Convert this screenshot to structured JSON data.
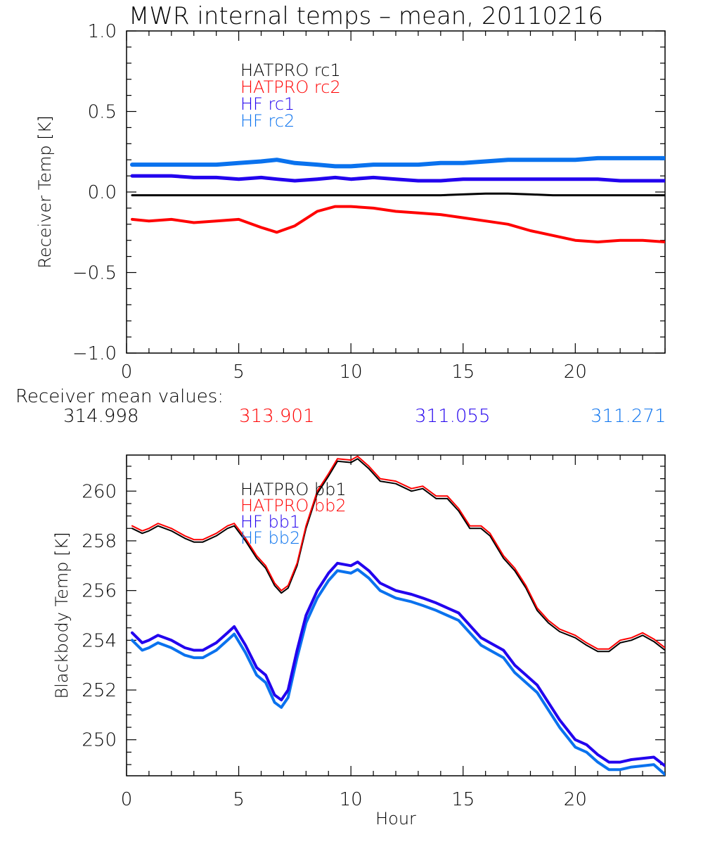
{
  "title": "MWR internal temps – mean, 20110216",
  "mean_values": {
    "label": "Receiver mean values:",
    "items": [
      {
        "text": "314.998",
        "color": "#000000"
      },
      {
        "text": "313.901",
        "color": "#ff0000"
      },
      {
        "text": "311.055",
        "color": "#2200ee"
      },
      {
        "text": "311.271",
        "color": "#0a72ee"
      }
    ]
  },
  "chart_data": [
    {
      "type": "line",
      "title": "MWR internal temps – mean, 20110216",
      "xlabel": "",
      "ylabel": "Receiver Temp [K]",
      "xlim": [
        0,
        24
      ],
      "ylim": [
        -1.0,
        1.0
      ],
      "xticks": [
        0,
        5,
        10,
        15,
        20
      ],
      "xtick_labels": [
        "0",
        "5",
        "10",
        "15",
        "20"
      ],
      "yticks": [
        -1.0,
        -0.5,
        0.0,
        0.5,
        1.0
      ],
      "ytick_labels": [
        "−1.0",
        "−0.5",
        "0.0",
        "0.5",
        "1.0"
      ],
      "grid": false,
      "legend_position": "top-left-center",
      "x": [
        0.25,
        1,
        2,
        3,
        4,
        5,
        6,
        6.7,
        7.5,
        8.5,
        9.3,
        10,
        11,
        12,
        13,
        14,
        15,
        16,
        17,
        18,
        19,
        20,
        21,
        22,
        23,
        24
      ],
      "series": [
        {
          "name": "HATPRO rc1",
          "color": "#000000",
          "width": 3,
          "values": [
            -0.02,
            -0.02,
            -0.02,
            -0.02,
            -0.02,
            -0.02,
            -0.02,
            -0.02,
            -0.02,
            -0.02,
            -0.02,
            -0.02,
            -0.02,
            -0.02,
            -0.02,
            -0.02,
            -0.015,
            -0.01,
            -0.01,
            -0.015,
            -0.02,
            -0.02,
            -0.02,
            -0.02,
            -0.02,
            -0.02
          ]
        },
        {
          "name": "HATPRO rc2",
          "color": "#ff0000",
          "width": 4,
          "values": [
            -0.17,
            -0.18,
            -0.17,
            -0.19,
            -0.18,
            -0.17,
            -0.22,
            -0.25,
            -0.21,
            -0.12,
            -0.09,
            -0.09,
            -0.1,
            -0.12,
            -0.13,
            -0.14,
            -0.16,
            -0.18,
            -0.2,
            -0.24,
            -0.27,
            -0.3,
            -0.31,
            -0.3,
            -0.3,
            -0.31
          ]
        },
        {
          "name": "HF rc1",
          "color": "#2200ee",
          "width": 5,
          "values": [
            0.1,
            0.1,
            0.1,
            0.09,
            0.09,
            0.08,
            0.09,
            0.08,
            0.07,
            0.08,
            0.09,
            0.08,
            0.09,
            0.08,
            0.07,
            0.07,
            0.08,
            0.08,
            0.08,
            0.08,
            0.08,
            0.08,
            0.08,
            0.07,
            0.07,
            0.07
          ]
        },
        {
          "name": "HF rc2",
          "color": "#0a72ee",
          "width": 6,
          "values": [
            0.17,
            0.17,
            0.17,
            0.17,
            0.17,
            0.18,
            0.19,
            0.2,
            0.18,
            0.17,
            0.16,
            0.16,
            0.17,
            0.17,
            0.17,
            0.18,
            0.18,
            0.19,
            0.2,
            0.2,
            0.2,
            0.2,
            0.21,
            0.21,
            0.21,
            0.21
          ]
        }
      ]
    },
    {
      "type": "line",
      "title": "",
      "xlabel": "Hour",
      "ylabel": "Blackbody Temp [K]",
      "xlim": [
        0,
        24
      ],
      "ylim": [
        248.55,
        261.45
      ],
      "xticks": [
        0,
        5,
        10,
        15,
        20
      ],
      "xtick_labels": [
        "0",
        "5",
        "10",
        "15",
        "20"
      ],
      "yticks": [
        250,
        252,
        254,
        256,
        258,
        260
      ],
      "ytick_labels": [
        "250",
        "252",
        "254",
        "256",
        "258",
        "260"
      ],
      "grid": false,
      "legend_position": "top-left-center",
      "x": [
        0.25,
        0.7,
        1.0,
        1.4,
        2.0,
        2.6,
        3.0,
        3.4,
        4.0,
        4.5,
        4.8,
        5.3,
        5.8,
        6.2,
        6.6,
        6.9,
        7.2,
        7.6,
        8.0,
        8.5,
        9.0,
        9.4,
        10.0,
        10.3,
        10.8,
        11.3,
        12.0,
        12.7,
        13.2,
        13.8,
        14.3,
        14.8,
        15.3,
        15.8,
        16.2,
        16.8,
        17.3,
        17.8,
        18.3,
        18.8,
        19.3,
        20.0,
        20.5,
        21.0,
        21.5,
        22.0,
        22.5,
        23.0,
        23.5,
        24.0
      ],
      "series": [
        {
          "name": "HATPRO bb1",
          "color": "#000000",
          "width": 2,
          "values": [
            258.5,
            258.3,
            258.4,
            258.6,
            258.4,
            258.1,
            257.95,
            257.95,
            258.2,
            258.5,
            258.6,
            258.0,
            257.3,
            256.9,
            256.2,
            255.9,
            256.1,
            257.0,
            258.5,
            259.9,
            260.6,
            261.2,
            261.15,
            261.3,
            260.9,
            260.4,
            260.3,
            260.0,
            260.1,
            259.7,
            259.7,
            259.2,
            258.5,
            258.5,
            258.2,
            257.3,
            256.8,
            256.1,
            255.2,
            254.7,
            254.35,
            254.1,
            253.8,
            253.55,
            253.55,
            253.9,
            254.0,
            254.2,
            253.95,
            253.6
          ]
        },
        {
          "name": "HATPRO bb2",
          "color": "#ff0000",
          "width": 2,
          "values": [
            258.6,
            258.4,
            258.5,
            258.7,
            258.5,
            258.2,
            258.05,
            258.05,
            258.3,
            258.6,
            258.7,
            258.1,
            257.4,
            257.0,
            256.3,
            256.0,
            256.2,
            257.1,
            258.6,
            260.0,
            260.7,
            261.3,
            261.25,
            261.4,
            261.0,
            260.5,
            260.4,
            260.1,
            260.2,
            259.8,
            259.8,
            259.3,
            258.6,
            258.6,
            258.3,
            257.4,
            256.9,
            256.2,
            255.3,
            254.8,
            254.45,
            254.2,
            253.9,
            253.65,
            253.65,
            254.0,
            254.1,
            254.3,
            254.05,
            253.7
          ]
        },
        {
          "name": "HF bb1",
          "color": "#2200ee",
          "width": 4,
          "values": [
            254.3,
            253.9,
            254.0,
            254.2,
            254.0,
            253.7,
            253.6,
            253.6,
            253.9,
            254.3,
            254.55,
            253.8,
            252.9,
            252.6,
            251.8,
            251.6,
            252.0,
            253.6,
            255.0,
            256.0,
            256.7,
            257.1,
            257.0,
            257.15,
            256.8,
            256.3,
            256.0,
            255.85,
            255.7,
            255.5,
            255.3,
            255.1,
            254.6,
            254.1,
            253.9,
            253.6,
            253.0,
            252.6,
            252.2,
            251.5,
            250.8,
            250.0,
            249.8,
            249.4,
            249.1,
            249.1,
            249.2,
            249.25,
            249.3,
            248.95
          ]
        },
        {
          "name": "HF bb2",
          "color": "#0a72ee",
          "width": 4,
          "values": [
            254.0,
            253.6,
            253.7,
            253.9,
            253.7,
            253.4,
            253.3,
            253.3,
            253.6,
            254.0,
            254.25,
            253.5,
            252.6,
            252.3,
            251.5,
            251.3,
            251.7,
            253.3,
            254.7,
            255.7,
            256.4,
            256.8,
            256.7,
            256.85,
            256.5,
            256.0,
            255.7,
            255.55,
            255.4,
            255.2,
            255.0,
            254.8,
            254.3,
            253.8,
            253.6,
            253.3,
            252.7,
            252.3,
            251.9,
            251.2,
            250.5,
            249.7,
            249.5,
            249.1,
            248.8,
            248.8,
            248.9,
            248.95,
            249.0,
            248.6
          ]
        }
      ]
    }
  ]
}
